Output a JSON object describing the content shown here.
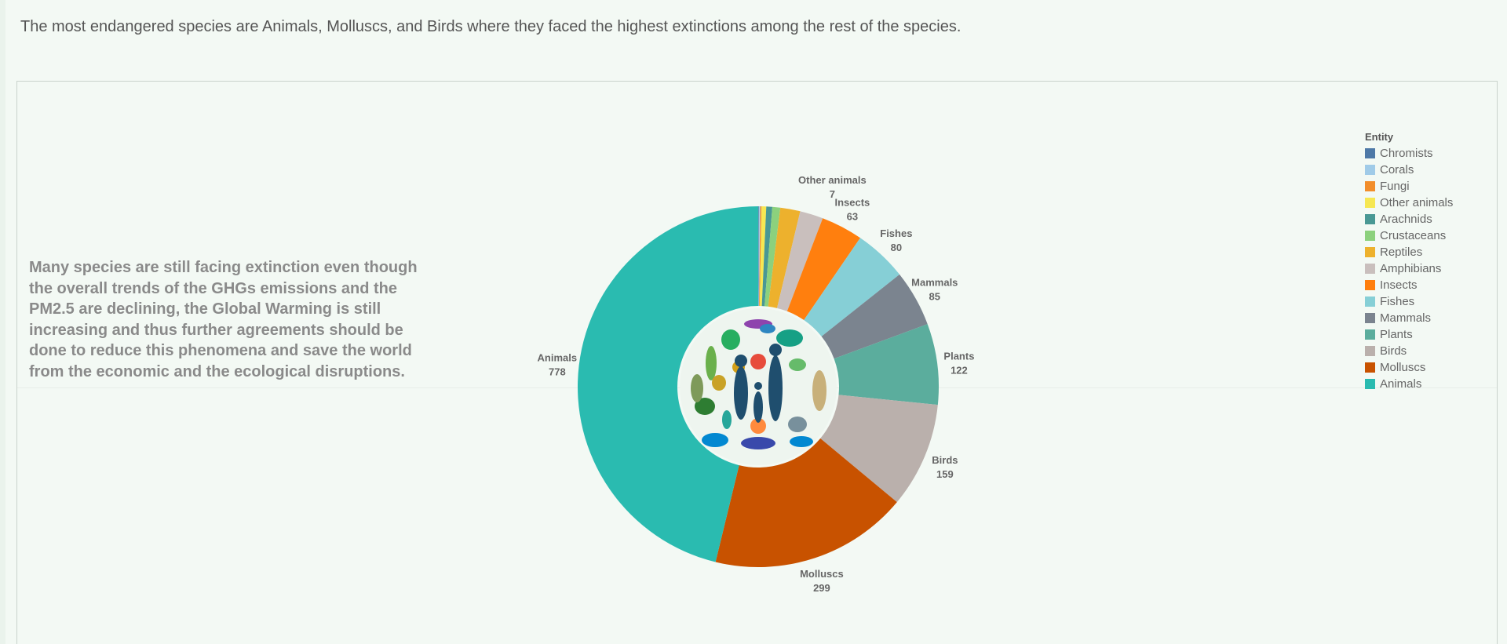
{
  "header": {
    "title": "The most endangered species are Animals, Molluscs, and Birds where they faced the highest extinctions among the rest of the species."
  },
  "narrative": {
    "lines": [
      "Many species are still facing extinction even though",
      "the overall trends of the GHGs emissions and the",
      "PM2.5 are declining, the Global Warming is still",
      "increasing and thus further agreements should be",
      "done to reduce this phenomena and save the world",
      "from the economic and the ecological disruptions."
    ]
  },
  "chart_data": {
    "type": "pie",
    "legend_title": "Entity",
    "legend_placement": "right",
    "center_image": "biodiversity-silhouettes-icon",
    "series": [
      {
        "name": "Chromists",
        "value": 1,
        "color": "#4e79a7",
        "label_shown": false
      },
      {
        "name": "Corals",
        "value": 2,
        "color": "#a0cbe8",
        "label_shown": false
      },
      {
        "name": "Fungi",
        "value": 2,
        "color": "#f28e2b",
        "label_shown": false
      },
      {
        "name": "Other animals",
        "value": 7,
        "color": "#f6e752",
        "label_shown": true
      },
      {
        "name": "Arachnids",
        "value": 9,
        "color": "#499894",
        "label_shown": false
      },
      {
        "name": "Crustaceans",
        "value": 12,
        "color": "#8cd17d",
        "label_shown": false
      },
      {
        "name": "Reptiles",
        "value": 30,
        "color": "#edb12d",
        "label_shown": false
      },
      {
        "name": "Amphibians",
        "value": 35,
        "color": "#c9bfbd",
        "label_shown": false
      },
      {
        "name": "Insects",
        "value": 63,
        "color": "#ff7f0e",
        "label_shown": true
      },
      {
        "name": "Fishes",
        "value": 80,
        "color": "#86cfd6",
        "label_shown": true
      },
      {
        "name": "Mammals",
        "value": 85,
        "color": "#7b848f",
        "label_shown": true
      },
      {
        "name": "Plants",
        "value": 122,
        "color": "#5bad9d",
        "label_shown": true
      },
      {
        "name": "Birds",
        "value": 159,
        "color": "#bab0ac",
        "label_shown": true
      },
      {
        "name": "Molluscs",
        "value": 299,
        "color": "#c85200",
        "label_shown": true
      },
      {
        "name": "Animals",
        "value": 778,
        "color": "#2abbb0",
        "label_shown": true
      }
    ]
  }
}
